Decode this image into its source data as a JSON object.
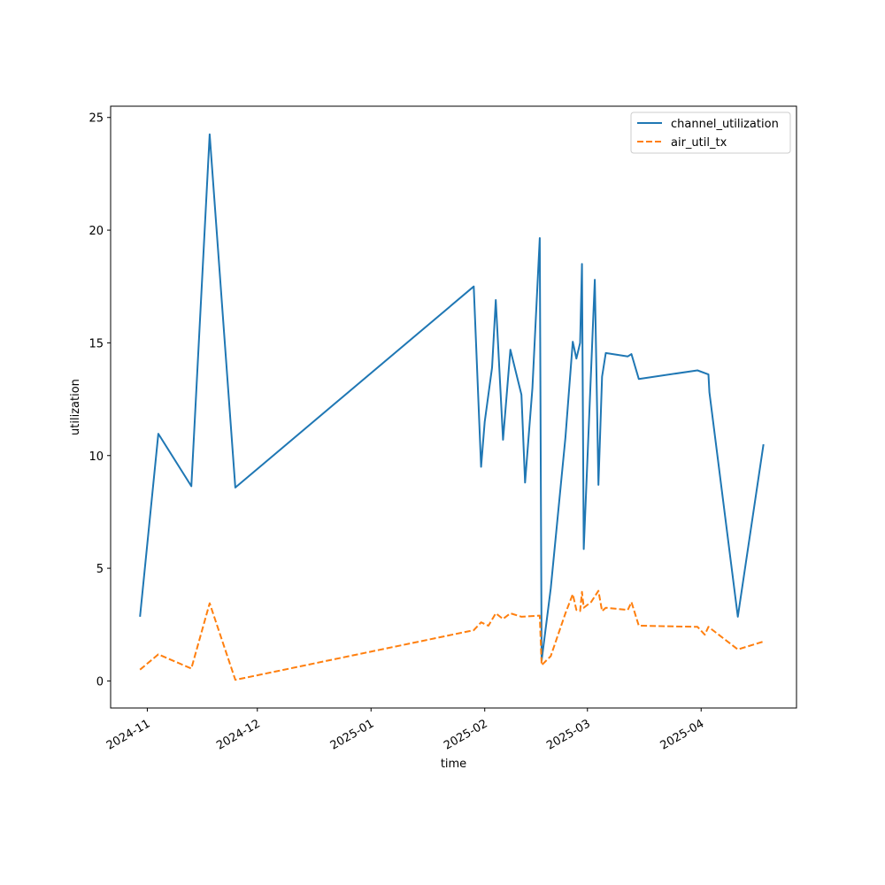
{
  "chart_data": {
    "type": "line",
    "title": "",
    "xlabel": "time",
    "ylabel": "utilization",
    "x_axis_type": "date",
    "xlim": [
      "2024-10-22",
      "2025-04-27"
    ],
    "ylim": [
      -1.2,
      25.5
    ],
    "x_ticks": [
      {
        "date": "2024-11-01",
        "label": "2024-11"
      },
      {
        "date": "2024-12-01",
        "label": "2024-12"
      },
      {
        "date": "2025-01-01",
        "label": "2025-01"
      },
      {
        "date": "2025-02-01",
        "label": "2025-02"
      },
      {
        "date": "2025-03-01",
        "label": "2025-03"
      },
      {
        "date": "2025-04-01",
        "label": "2025-04"
      }
    ],
    "y_ticks": [
      {
        "value": 0,
        "label": "0"
      },
      {
        "value": 5,
        "label": "5"
      },
      {
        "value": 10,
        "label": "10"
      },
      {
        "value": 15,
        "label": "15"
      },
      {
        "value": 20,
        "label": "20"
      },
      {
        "value": 25,
        "label": "25"
      }
    ],
    "grid": false,
    "legend_position": "top-right",
    "series": [
      {
        "name": "channel_utilization",
        "color": "#1f77b4",
        "line_style": "solid",
        "points": [
          {
            "x": "2024-10-30",
            "y": 2.85
          },
          {
            "x": "2024-11-04",
            "y": 10.97
          },
          {
            "x": "2024-11-13",
            "y": 8.64
          },
          {
            "x": "2024-11-18",
            "y": 24.25
          },
          {
            "x": "2024-11-25",
            "y": 8.58
          },
          {
            "x": "2025-01-29",
            "y": 17.5
          },
          {
            "x": "2025-01-31",
            "y": 9.5
          },
          {
            "x": "2025-02-01",
            "y": 11.5
          },
          {
            "x": "2025-02-03",
            "y": 13.9
          },
          {
            "x": "2025-02-04",
            "y": 16.9
          },
          {
            "x": "2025-02-06",
            "y": 10.7
          },
          {
            "x": "2025-02-08",
            "y": 14.7
          },
          {
            "x": "2025-02-11",
            "y": 12.7
          },
          {
            "x": "2025-02-12",
            "y": 8.8
          },
          {
            "x": "2025-02-14",
            "y": 13.0
          },
          {
            "x": "2025-02-16",
            "y": 19.65
          },
          {
            "x": "2025-02-16T12:00",
            "y": 0.9
          },
          {
            "x": "2025-02-19",
            "y": 4.1
          },
          {
            "x": "2025-02-23",
            "y": 10.8
          },
          {
            "x": "2025-02-25",
            "y": 15.05
          },
          {
            "x": "2025-02-26",
            "y": 14.3
          },
          {
            "x": "2025-02-27",
            "y": 15.0
          },
          {
            "x": "2025-02-27T12:00",
            "y": 18.5
          },
          {
            "x": "2025-02-28",
            "y": 5.85
          },
          {
            "x": "2025-03-03",
            "y": 17.8
          },
          {
            "x": "2025-03-04",
            "y": 8.7
          },
          {
            "x": "2025-03-05",
            "y": 13.5
          },
          {
            "x": "2025-03-06",
            "y": 14.55
          },
          {
            "x": "2025-03-12",
            "y": 14.4
          },
          {
            "x": "2025-03-13",
            "y": 14.5
          },
          {
            "x": "2025-03-15",
            "y": 13.4
          },
          {
            "x": "2025-03-31",
            "y": 13.78
          },
          {
            "x": "2025-04-03",
            "y": 13.6
          },
          {
            "x": "2025-04-03T06:00",
            "y": 12.8
          },
          {
            "x": "2025-04-11",
            "y": 2.85
          },
          {
            "x": "2025-04-18",
            "y": 10.5
          }
        ]
      },
      {
        "name": "air_util_tx",
        "color": "#ff7f0e",
        "line_style": "dashed",
        "points": [
          {
            "x": "2024-10-30",
            "y": 0.5
          },
          {
            "x": "2024-11-04",
            "y": 1.18
          },
          {
            "x": "2024-11-13",
            "y": 0.55
          },
          {
            "x": "2024-11-18",
            "y": 3.45
          },
          {
            "x": "2024-11-25",
            "y": 0.05
          },
          {
            "x": "2025-01-29",
            "y": 2.25
          },
          {
            "x": "2025-01-31",
            "y": 2.6
          },
          {
            "x": "2025-02-02",
            "y": 2.45
          },
          {
            "x": "2025-02-04",
            "y": 3.0
          },
          {
            "x": "2025-02-06",
            "y": 2.75
          },
          {
            "x": "2025-02-08",
            "y": 3.0
          },
          {
            "x": "2025-02-11",
            "y": 2.85
          },
          {
            "x": "2025-02-16",
            "y": 2.9
          },
          {
            "x": "2025-02-16T12:00",
            "y": 0.7
          },
          {
            "x": "2025-02-19",
            "y": 1.1
          },
          {
            "x": "2025-02-23",
            "y": 3.0
          },
          {
            "x": "2025-02-25",
            "y": 3.85
          },
          {
            "x": "2025-02-26",
            "y": 3.15
          },
          {
            "x": "2025-02-27",
            "y": 3.1
          },
          {
            "x": "2025-02-27T12:00",
            "y": 3.95
          },
          {
            "x": "2025-02-28",
            "y": 3.25
          },
          {
            "x": "2025-03-02",
            "y": 3.5
          },
          {
            "x": "2025-03-04",
            "y": 4.0
          },
          {
            "x": "2025-03-05",
            "y": 3.1
          },
          {
            "x": "2025-03-06",
            "y": 3.25
          },
          {
            "x": "2025-03-12",
            "y": 3.15
          },
          {
            "x": "2025-03-13",
            "y": 3.5
          },
          {
            "x": "2025-03-15",
            "y": 2.45
          },
          {
            "x": "2025-03-31",
            "y": 2.4
          },
          {
            "x": "2025-04-02",
            "y": 2.05
          },
          {
            "x": "2025-04-03",
            "y": 2.4
          },
          {
            "x": "2025-04-11",
            "y": 1.4
          },
          {
            "x": "2025-04-18",
            "y": 1.75
          }
        ]
      }
    ]
  }
}
